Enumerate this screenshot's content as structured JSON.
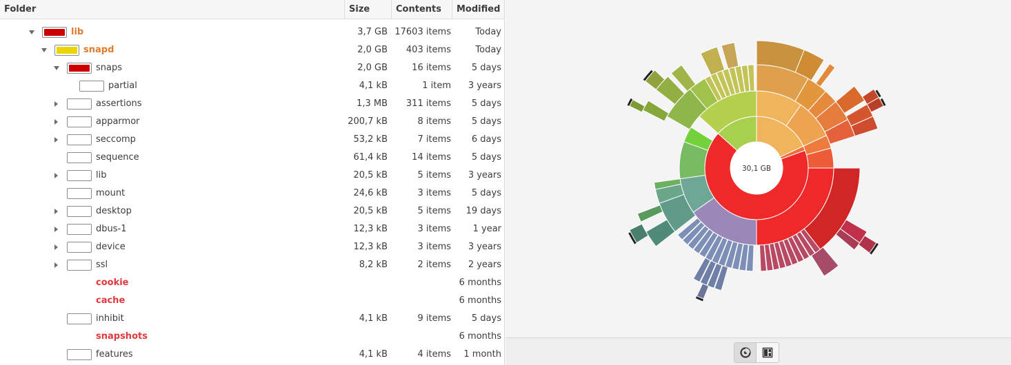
{
  "columns": {
    "folder": "Folder",
    "size": "Size",
    "contents": "Contents",
    "modified": "Modified"
  },
  "rows": [
    {
      "name": "lib",
      "size": "3,7 GB",
      "contents": "17603 items",
      "modified": "Today",
      "depth": 0,
      "expander": "open",
      "swatch": "#cc0000",
      "text_color": "#e07b2d",
      "bold": true
    },
    {
      "name": "snapd",
      "size": "2,0 GB",
      "contents": "403 items",
      "modified": "Today",
      "depth": 1,
      "expander": "open",
      "swatch": "#edd400",
      "text_color": "#e07b2d",
      "bold": true
    },
    {
      "name": "snaps",
      "size": "2,0 GB",
      "contents": "16 items",
      "modified": "5 days",
      "depth": 2,
      "expander": "open",
      "swatch": "#cc0000",
      "text_color": "#3c3c3c",
      "bold": false
    },
    {
      "name": "partial",
      "size": "4,1 kB",
      "contents": "1 item",
      "modified": "3 years",
      "depth": 3,
      "expander": "none",
      "swatch": "",
      "text_color": "#3c3c3c",
      "bold": false
    },
    {
      "name": "assertions",
      "size": "1,3 MB",
      "contents": "311 items",
      "modified": "5 days",
      "depth": 2,
      "expander": "closed",
      "swatch": "",
      "text_color": "#3c3c3c",
      "bold": false
    },
    {
      "name": "apparmor",
      "size": "200,7 kB",
      "contents": "8 items",
      "modified": "5 days",
      "depth": 2,
      "expander": "closed",
      "swatch": "",
      "text_color": "#3c3c3c",
      "bold": false
    },
    {
      "name": "seccomp",
      "size": "53,2 kB",
      "contents": "7 items",
      "modified": "6 days",
      "depth": 2,
      "expander": "closed",
      "swatch": "",
      "text_color": "#3c3c3c",
      "bold": false
    },
    {
      "name": "sequence",
      "size": "61,4 kB",
      "contents": "14 items",
      "modified": "5 days",
      "depth": 2,
      "expander": "none",
      "swatch": "",
      "text_color": "#3c3c3c",
      "bold": false
    },
    {
      "name": "lib",
      "size": "20,5 kB",
      "contents": "5 items",
      "modified": "3 years",
      "depth": 2,
      "expander": "closed",
      "swatch": "",
      "text_color": "#3c3c3c",
      "bold": false
    },
    {
      "name": "mount",
      "size": "24,6 kB",
      "contents": "3 items",
      "modified": "5 days",
      "depth": 2,
      "expander": "none",
      "swatch": "",
      "text_color": "#3c3c3c",
      "bold": false
    },
    {
      "name": "desktop",
      "size": "20,5 kB",
      "contents": "5 items",
      "modified": "19 days",
      "depth": 2,
      "expander": "closed",
      "swatch": "",
      "text_color": "#3c3c3c",
      "bold": false
    },
    {
      "name": "dbus-1",
      "size": "12,3 kB",
      "contents": "3 items",
      "modified": "1 year",
      "depth": 2,
      "expander": "closed",
      "swatch": "",
      "text_color": "#3c3c3c",
      "bold": false
    },
    {
      "name": "device",
      "size": "12,3 kB",
      "contents": "3 items",
      "modified": "3 years",
      "depth": 2,
      "expander": "closed",
      "swatch": "",
      "text_color": "#3c3c3c",
      "bold": false
    },
    {
      "name": "ssl",
      "size": "8,2 kB",
      "contents": "2 items",
      "modified": "2 years",
      "depth": 2,
      "expander": "closed",
      "swatch": "",
      "text_color": "#3c3c3c",
      "bold": false
    },
    {
      "name": "cookie",
      "size": "",
      "contents": "",
      "modified": "6 months",
      "depth": 2,
      "expander": "none",
      "swatch": "none",
      "text_color": "#e0393e",
      "bold": true
    },
    {
      "name": "cache",
      "size": "",
      "contents": "",
      "modified": "6 months",
      "depth": 2,
      "expander": "none",
      "swatch": "none",
      "text_color": "#e0393e",
      "bold": true
    },
    {
      "name": "inhibit",
      "size": "4,1 kB",
      "contents": "9 items",
      "modified": "5 days",
      "depth": 2,
      "expander": "none",
      "swatch": "",
      "text_color": "#3c3c3c",
      "bold": false
    },
    {
      "name": "snapshots",
      "size": "",
      "contents": "",
      "modified": "6 months",
      "depth": 2,
      "expander": "none",
      "swatch": "none",
      "text_color": "#e0393e",
      "bold": true
    },
    {
      "name": "features",
      "size": "4,1 kB",
      "contents": "4 items",
      "modified": "1 month",
      "depth": 2,
      "expander": "none",
      "swatch": "",
      "text_color": "#3c3c3c",
      "bold": false
    }
  ],
  "chart": {
    "center_label": "30,1 GB",
    "colors": {
      "red": "#ef2929",
      "purple": "#9b87b8",
      "teal": "#6ea698",
      "green": "#73c95b",
      "lime": "#a8d04e",
      "orange": "#f0b45c"
    }
  },
  "bottom_bar": {
    "ring_view_icon": "ring-chart-icon",
    "treemap_view_icon": "treemap-icon"
  }
}
